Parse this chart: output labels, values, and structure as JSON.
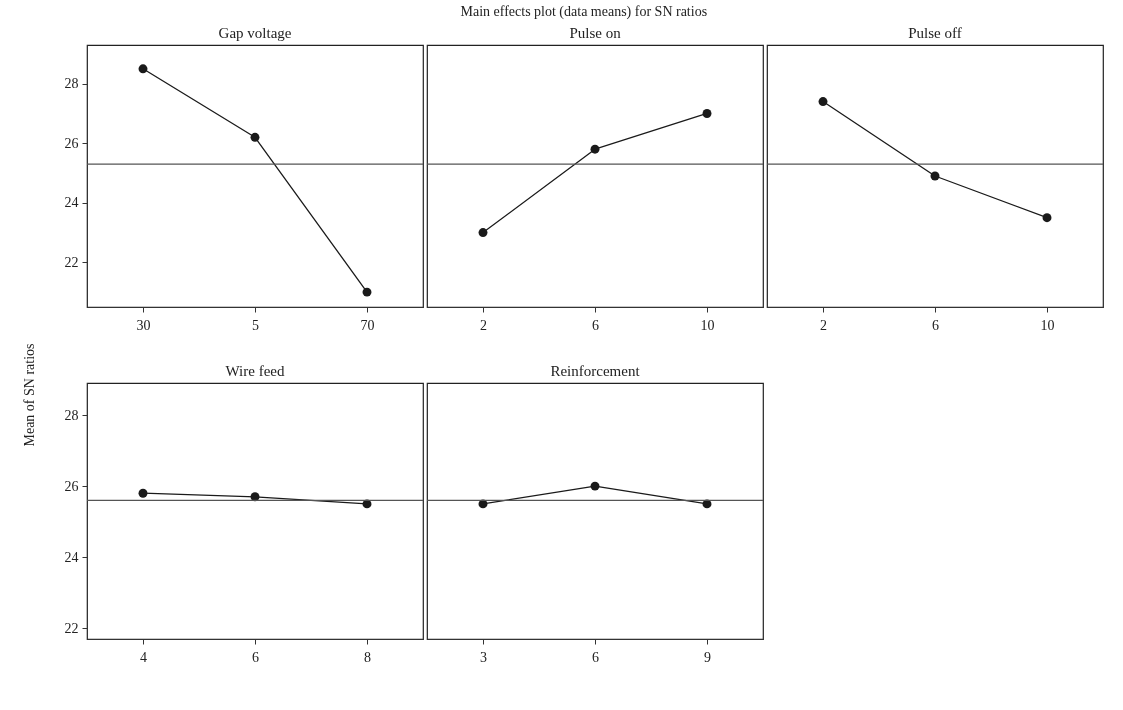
{
  "chart_data": [
    {
      "type": "line",
      "title": "Gap voltage",
      "annotations": [
        "Main effects plot (data means) for SN ratios"
      ],
      "ylabel": "Mean of SN ratios",
      "categories": [
        "30",
        "5",
        "70"
      ],
      "series": [
        {
          "color": "#1a1a1a",
          "values": [
            28.5,
            26.2,
            21.0
          ]
        }
      ],
      "ylim": [
        20.5,
        29.3
      ],
      "yticks": [
        22,
        24,
        26,
        28
      ],
      "ref_lines": [
        {
          "axis": "y",
          "value": 25.3,
          "color": "#555555"
        }
      ],
      "marker": "circle",
      "line_style": "solid"
    },
    {
      "type": "line",
      "title": "Pulse on",
      "categories": [
        "2",
        "6",
        "10"
      ],
      "series": [
        {
          "color": "#1a1a1a",
          "values": [
            23.0,
            25.8,
            27.0
          ]
        }
      ],
      "ylim": [
        20.5,
        29.3
      ],
      "yticks": [
        22,
        24,
        26,
        28
      ],
      "ref_lines": [
        {
          "axis": "y",
          "value": 25.3,
          "color": "#555555"
        }
      ],
      "marker": "circle",
      "line_style": "solid",
      "tick_labels": "x"
    },
    {
      "type": "line",
      "title": "Pulse off",
      "categories": [
        "2",
        "6",
        "10"
      ],
      "series": [
        {
          "color": "#1a1a1a",
          "values": [
            27.4,
            24.9,
            23.5
          ]
        }
      ],
      "ylim": [
        20.5,
        29.3
      ],
      "yticks": [
        22,
        24,
        26,
        28
      ],
      "ref_lines": [
        {
          "axis": "y",
          "value": 25.3,
          "color": "#555555"
        }
      ],
      "marker": "circle",
      "line_style": "solid",
      "tick_labels": "x"
    },
    {
      "type": "line",
      "title": "Wire feed",
      "categories": [
        "4",
        "6",
        "8"
      ],
      "series": [
        {
          "color": "#1a1a1a",
          "values": [
            25.8,
            25.7,
            25.5
          ]
        }
      ],
      "ylim": [
        21.7,
        28.9
      ],
      "yticks": [
        22,
        24,
        26,
        28
      ],
      "ref_lines": [
        {
          "axis": "y",
          "value": 25.6,
          "color": "#555555"
        }
      ],
      "marker": "circle",
      "line_style": "solid"
    },
    {
      "type": "line",
      "title": "Reinforcement",
      "categories": [
        "3",
        "6",
        "9"
      ],
      "series": [
        {
          "color": "#1a1a1a",
          "values": [
            25.5,
            26.0,
            25.5
          ]
        }
      ],
      "ylim": [
        21.7,
        28.9
      ],
      "yticks": [
        22,
        24,
        26,
        28
      ],
      "ref_lines": [
        {
          "axis": "y",
          "value": 25.6,
          "color": "#555555"
        }
      ],
      "marker": "circle",
      "line_style": "solid",
      "tick_labels": "x"
    }
  ]
}
